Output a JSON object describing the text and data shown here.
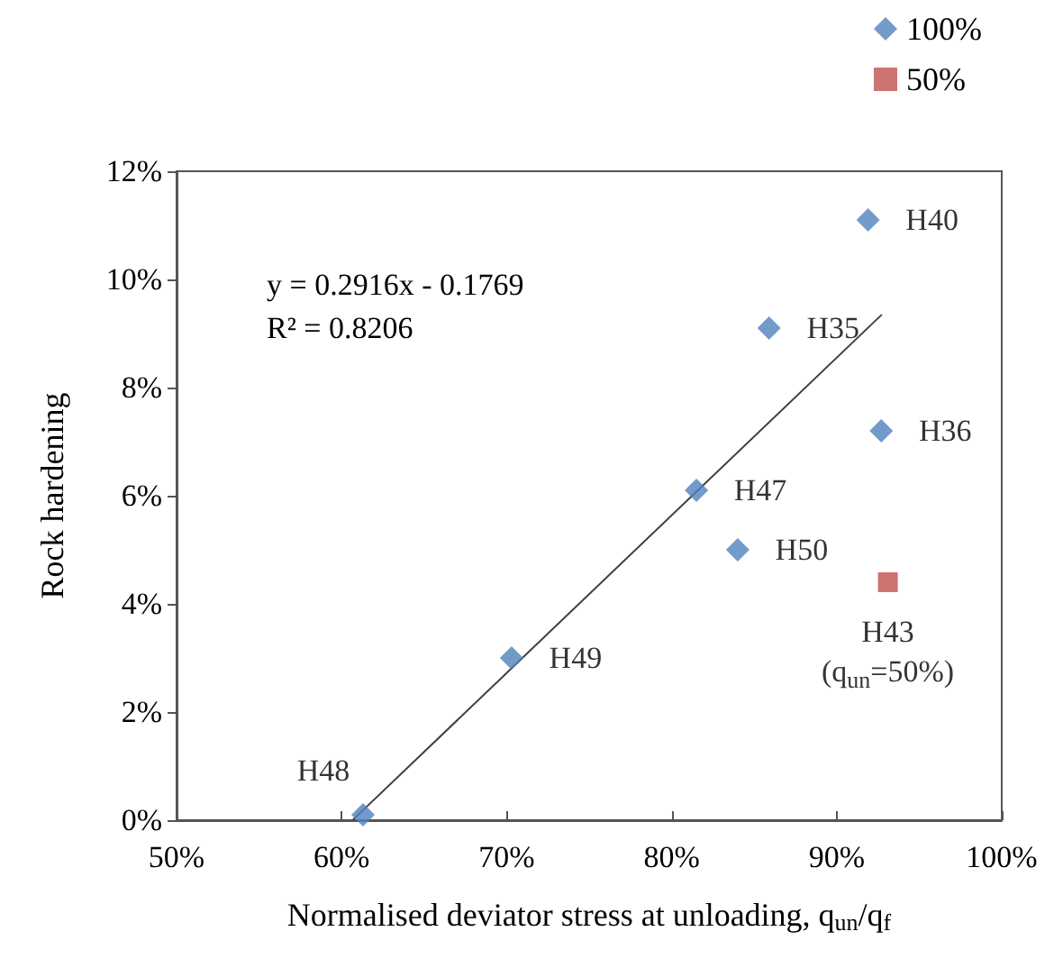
{
  "chart_data": {
    "type": "scatter",
    "xlabel": "Normalised deviator stress at unloading, q$_{un}$/q$_{f}$",
    "ylabel": "Rock hardening",
    "xlim": [
      50,
      100
    ],
    "xticks": [
      {
        "value": 50,
        "label": "50%"
      },
      {
        "value": 60,
        "label": "60%"
      },
      {
        "value": 70,
        "label": "70%"
      },
      {
        "value": 80,
        "label": "80%"
      },
      {
        "value": 90,
        "label": "90%"
      },
      {
        "value": 100,
        "label": "100%"
      }
    ],
    "ylim": [
      0,
      12
    ],
    "yticks": [
      {
        "value": 0,
        "label": "0%"
      },
      {
        "value": 2,
        "label": "2%"
      },
      {
        "value": 4,
        "label": "4%"
      },
      {
        "value": 6,
        "label": "6%"
      },
      {
        "value": 8,
        "label": "8%"
      },
      {
        "value": 10,
        "label": "10%"
      },
      {
        "value": 12,
        "label": "12%"
      }
    ],
    "grid": false,
    "legend": "top right",
    "annotations": [
      "y = 0.2916x - 0.1769\nR² = 0.8206"
    ],
    "series": [
      {
        "name": "100%",
        "color": "#4f81bd",
        "marker": "diamond",
        "x": [
          61.3,
          70.3,
          81.5,
          84.0,
          85.9,
          92.7,
          91.9
        ],
        "values": [
          0.1,
          3.0,
          6.1,
          5.0,
          9.1,
          7.2,
          11.1
        ],
        "value_labels": [
          "H48",
          "H49",
          "H47",
          "H50",
          "H35",
          "H36",
          "H40"
        ]
      },
      {
        "name": "50%",
        "color": "#c0504d",
        "marker": "square",
        "x": [
          93.1
        ],
        "values": [
          4.4
        ],
        "value_labels": [
          "H43\n(q$_{un}$=50%)"
        ]
      },
      {
        "type": "line",
        "color": "#404040",
        "marker": "none",
        "line_style": "solid",
        "x": [
          60.7,
          92.7
        ],
        "values": [
          0.01,
          9.34
        ]
      }
    ]
  }
}
